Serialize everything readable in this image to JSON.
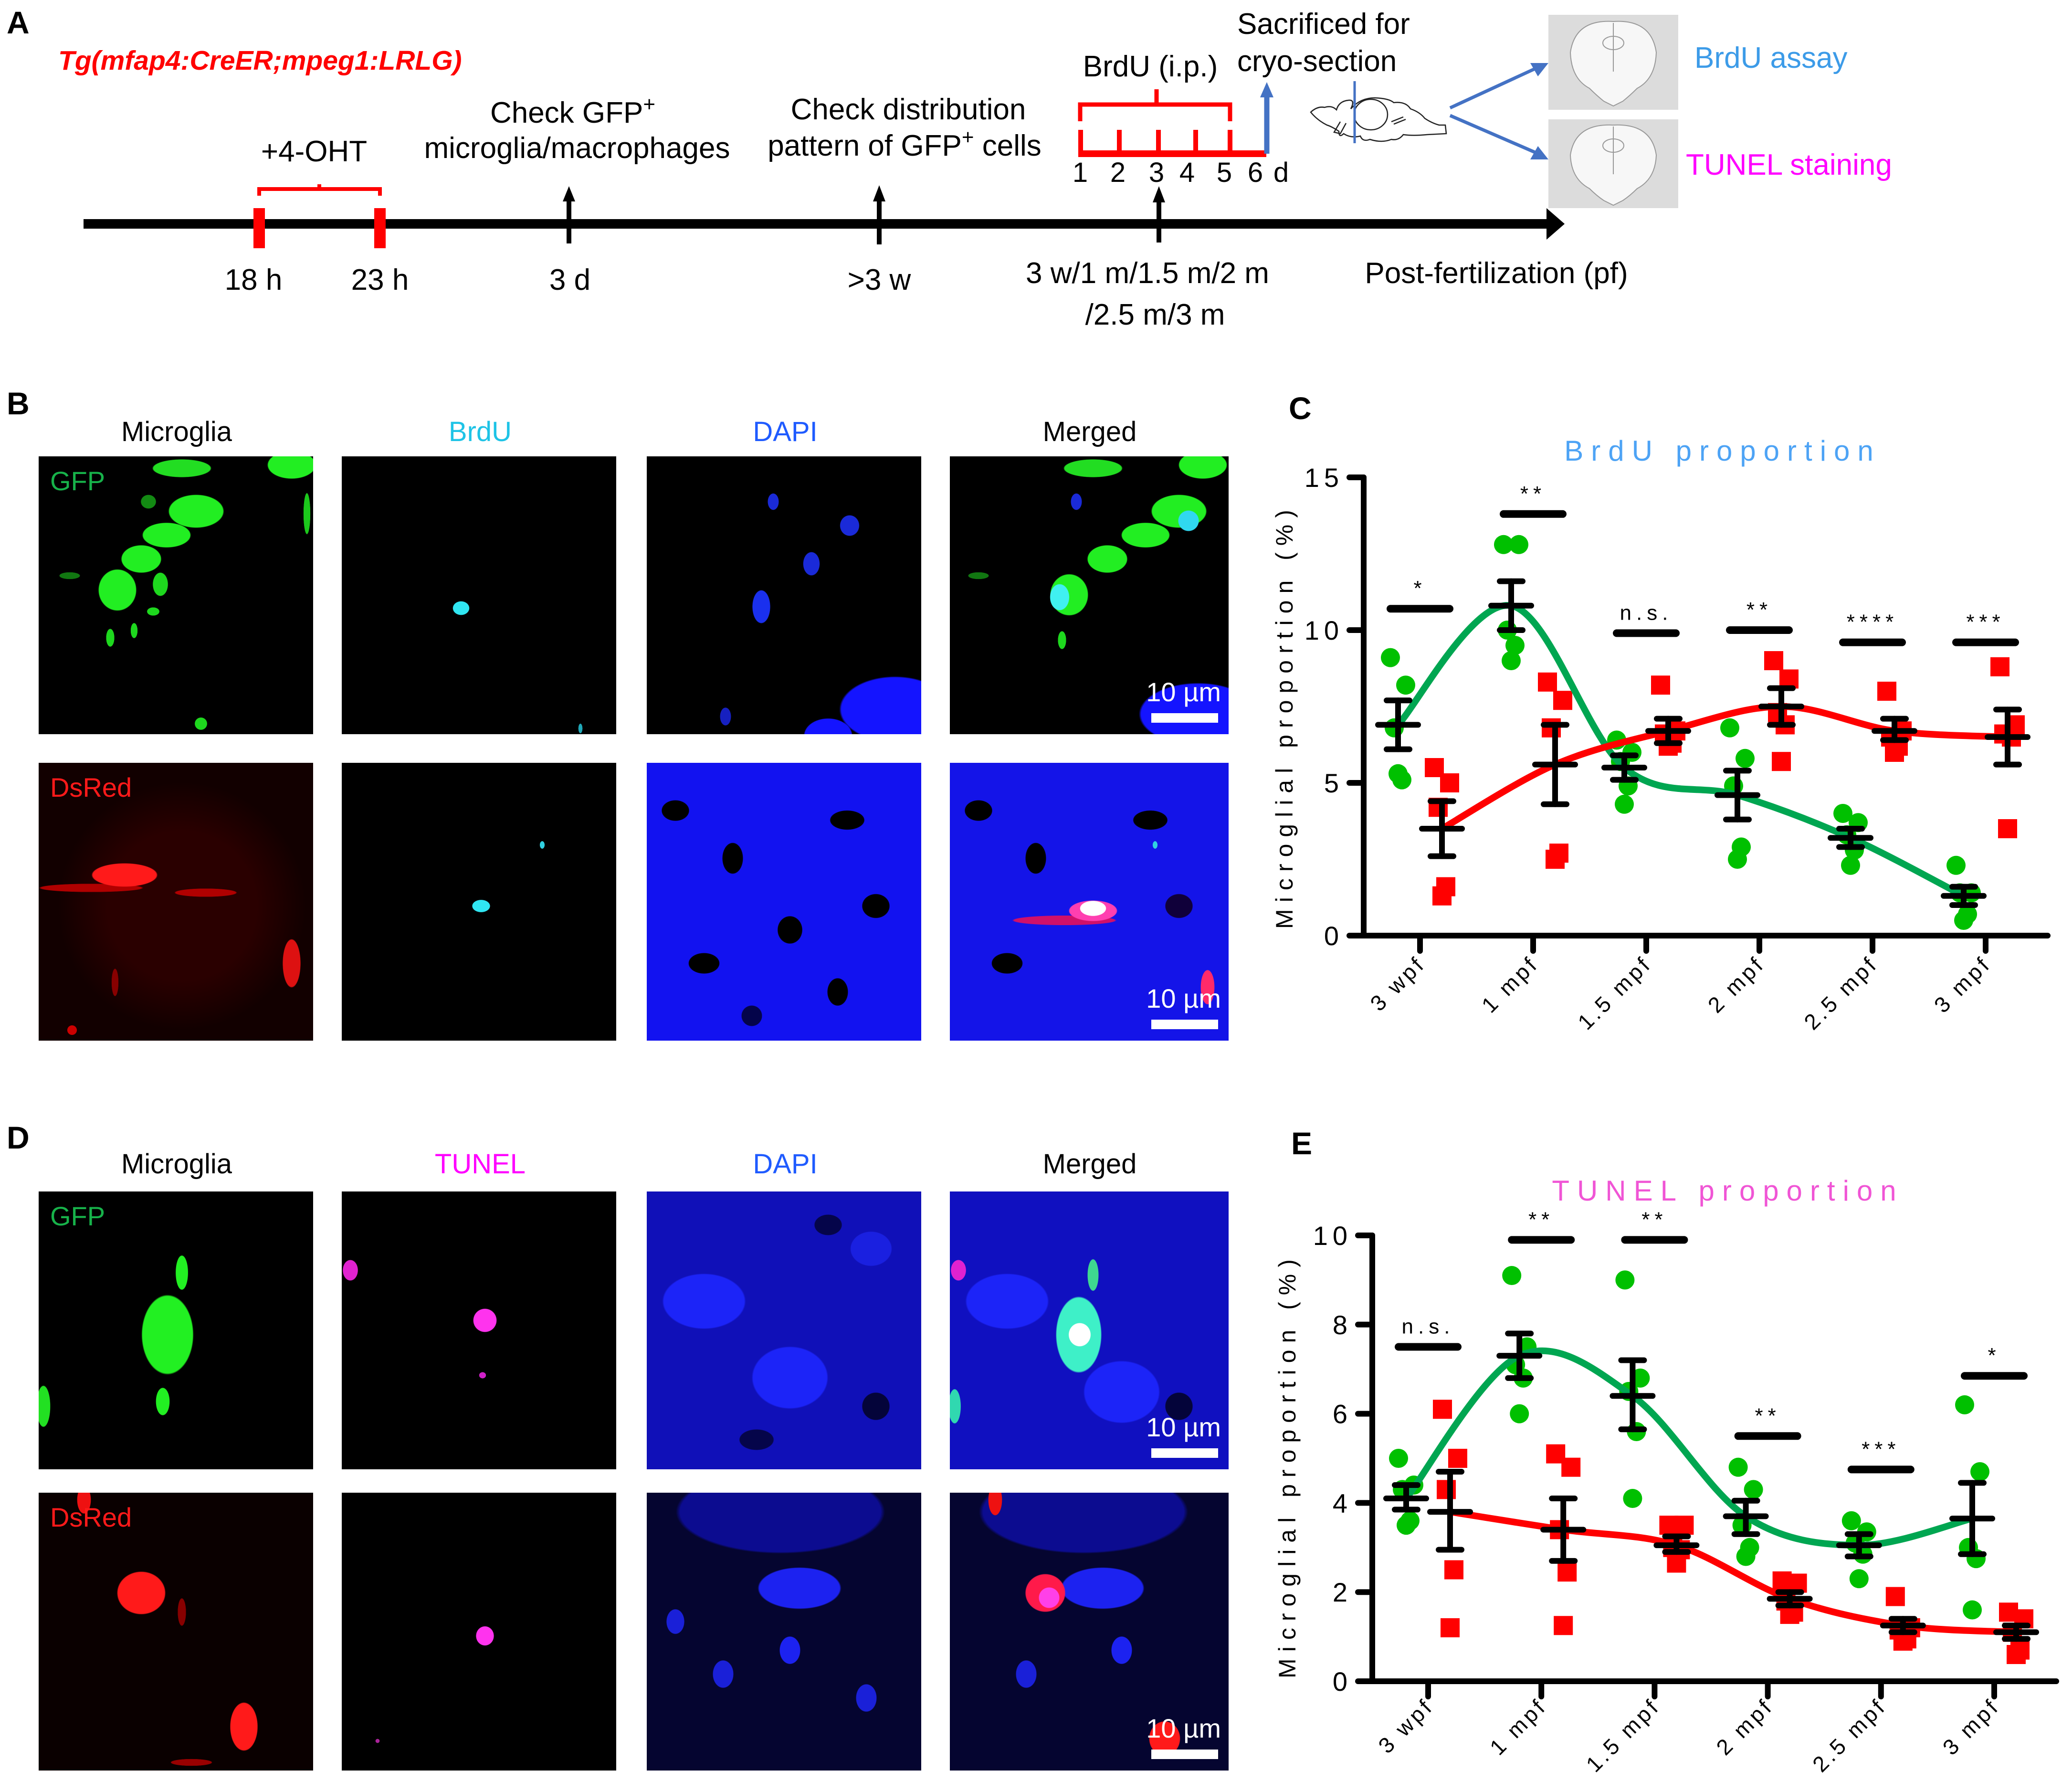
{
  "figure": {
    "panel_labels": {
      "a": "A",
      "b": "B",
      "c": "C",
      "d": "D",
      "e": "E"
    },
    "panel_a": {
      "transgenic_line": "Tg(mfap4:CreER;mpeg1:LRLG)",
      "treatment": "+4-OHT",
      "times": {
        "t1": "18 h",
        "t2": "23 h",
        "t3": "3 d",
        "t4": ">3 w",
        "t5_line1": "3 w/1 m/1.5 m/2 m",
        "t5_line2": "/2.5 m/3 m"
      },
      "axis_label": "Post-fertilization (pf)",
      "step_check_gfp": {
        "line1": "Check GFP",
        "sup": "+",
        "line2": "microglia/macrophages"
      },
      "step_distribution": {
        "line1": "Check distribution",
        "line2_pre": "pattern of GFP",
        "sup": "+",
        "line2_post": "cells"
      },
      "brdu": {
        "label": "BrdU (i.p.)",
        "days": [
          "1",
          "2",
          "3",
          "4",
          "5",
          "6"
        ],
        "unit": "d"
      },
      "sacrifice": {
        "line1": "Sacrificed for",
        "line2": "cryo-section"
      },
      "assays": {
        "brdu": "BrdU assay",
        "tunel": "TUNEL staining"
      },
      "colors": {
        "red": "#ff0000",
        "blue_arrow": "#4472c4",
        "brdu": "#3c9be8",
        "tunel": "#ff00ff"
      }
    },
    "panel_b": {
      "columns": [
        "Microglia",
        "BrdU",
        "DAPI",
        "Merged"
      ],
      "row_labels": [
        "GFP",
        "DsRed"
      ],
      "scale_bar": "10 µm"
    },
    "panel_d": {
      "columns": [
        "Microglia",
        "TUNEL",
        "DAPI",
        "Merged"
      ],
      "row_labels": [
        "GFP",
        "DsRed"
      ],
      "scale_bar": "10 µm"
    }
  },
  "chart_data": [
    {
      "panel": "C",
      "type": "scatter",
      "title": "BrdU proportion",
      "title_color": "#4da3f5",
      "xlabel": "",
      "ylabel": "Microglial proportion (%)",
      "ylim": [
        0,
        15
      ],
      "yticks": [
        0,
        5,
        10,
        15
      ],
      "grid": false,
      "categories": [
        "3 wpf",
        "1 mpf",
        "1.5 mpf",
        "2 mpf",
        "2.5 mpf",
        "3 mpf"
      ],
      "series": [
        {
          "name": "GFP",
          "marker": "circle",
          "color": "#00c000",
          "curve_color": "#00a651",
          "points": [
            [
              9.1,
              8.2,
              6.8,
              5.1,
              5.3
            ],
            [
              12.8,
              12.8,
              10.0,
              9.5,
              9.0
            ],
            [
              6.4,
              6.0,
              5.7,
              4.9,
              4.3
            ],
            [
              6.8,
              5.8,
              4.9,
              2.9,
              2.5
            ],
            [
              4.0,
              3.7,
              3.3,
              2.8,
              2.3
            ],
            [
              2.3,
              1.4,
              1.4,
              0.7,
              0.5
            ]
          ],
          "mean": [
            6.9,
            10.8,
            5.5,
            4.6,
            3.2,
            1.3
          ],
          "sem_upper": [
            7.7,
            11.6,
            5.9,
            5.4,
            3.5,
            1.6
          ],
          "sem_lower": [
            6.1,
            10.0,
            5.1,
            3.8,
            2.9,
            1.0
          ]
        },
        {
          "name": "DsRed",
          "marker": "square",
          "color": "#ff0000",
          "curve_color": "#ff0000",
          "points": [
            [
              5.5,
              5.0,
              4.2,
              1.6,
              1.3
            ],
            [
              8.3,
              7.7,
              6.8,
              2.7,
              2.5
            ],
            [
              8.2,
              6.7,
              6.6,
              6.3,
              6.2
            ],
            [
              9.0,
              8.4,
              7.3,
              6.9,
              5.7
            ],
            [
              8.0,
              6.7,
              6.5,
              6.2,
              6.0
            ],
            [
              8.8,
              6.9,
              6.6,
              6.5,
              3.5
            ]
          ],
          "mean": [
            3.5,
            5.6,
            6.7,
            7.5,
            6.7,
            6.5
          ],
          "sem_upper": [
            4.4,
            6.9,
            7.1,
            8.1,
            7.1,
            7.4
          ],
          "sem_lower": [
            2.6,
            4.3,
            6.3,
            6.9,
            6.4,
            5.6
          ]
        }
      ],
      "significance": [
        {
          "label": "*",
          "y": 10.7
        },
        {
          "label": "**",
          "y": 13.8
        },
        {
          "label": "n.s.",
          "y": 9.9
        },
        {
          "label": "**",
          "y": 10.0
        },
        {
          "label": "****",
          "y": 9.6
        },
        {
          "label": "***",
          "y": 9.6
        }
      ]
    },
    {
      "panel": "E",
      "type": "scatter",
      "title": "TUNEL proportion",
      "title_color": "#f055d5",
      "xlabel": "",
      "ylabel": "Microglial proportion (%)",
      "ylim": [
        0,
        10
      ],
      "yticks": [
        0,
        2,
        4,
        6,
        8,
        10
      ],
      "grid": false,
      "categories": [
        "3 wpf",
        "1 mpf",
        "1.5 mpf",
        "2 mpf",
        "2.5 mpf",
        "3 mpf"
      ],
      "series": [
        {
          "name": "GFP",
          "marker": "circle",
          "color": "#00c000",
          "curve_color": "#00a651",
          "points": [
            [
              5.0,
              4.4,
              4.3,
              3.6,
              3.5
            ],
            [
              9.1,
              7.5,
              7.1,
              6.8,
              6.0
            ],
            [
              9.0,
              6.8,
              6.5,
              5.6,
              4.1
            ],
            [
              4.8,
              4.3,
              3.5,
              3.0,
              2.8
            ],
            [
              3.6,
              3.35,
              3.1,
              2.85,
              2.3
            ],
            [
              6.2,
              4.7,
              3.0,
              2.75,
              1.6
            ]
          ],
          "mean": [
            4.1,
            7.3,
            6.4,
            3.7,
            3.05,
            3.65
          ],
          "sem_upper": [
            4.4,
            7.8,
            7.2,
            4.05,
            3.3,
            4.45
          ],
          "sem_lower": [
            3.85,
            6.8,
            5.65,
            3.3,
            2.8,
            2.85
          ]
        },
        {
          "name": "DsRed",
          "marker": "square",
          "color": "#ff0000",
          "curve_color": "#ff0000",
          "points": [
            [
              6.1,
              5.0,
              4.3,
              2.5,
              1.2
            ],
            [
              5.1,
              4.8,
              3.4,
              2.45,
              1.25
            ],
            [
              3.5,
              3.5,
              3.0,
              2.95,
              2.65
            ],
            [
              2.25,
              2.2,
              1.8,
              1.55,
              1.5
            ],
            [
              1.9,
              1.2,
              1.15,
              0.95,
              0.9
            ],
            [
              1.55,
              1.4,
              1.1,
              0.7,
              0.6
            ]
          ],
          "mean": [
            3.8,
            3.4,
            3.05,
            1.85,
            1.25,
            1.1
          ],
          "sem_upper": [
            4.7,
            4.1,
            3.25,
            2.0,
            1.4,
            1.25
          ],
          "sem_lower": [
            2.95,
            2.7,
            2.9,
            1.7,
            1.1,
            0.95
          ]
        }
      ],
      "significance": [
        {
          "label": "n.s.",
          "y": 7.5
        },
        {
          "label": "**",
          "y": 9.9
        },
        {
          "label": "**",
          "y": 9.9
        },
        {
          "label": "**",
          "y": 5.5
        },
        {
          "label": "***",
          "y": 4.75
        },
        {
          "label": "*",
          "y": 6.85
        }
      ]
    }
  ]
}
